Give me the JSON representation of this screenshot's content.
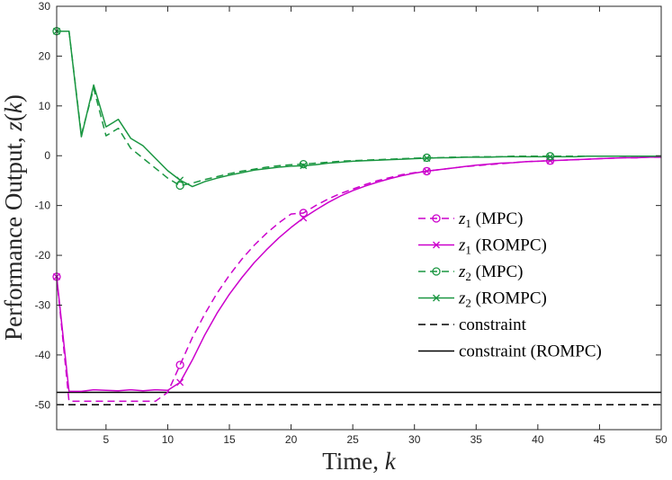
{
  "chart_data": {
    "type": "line",
    "xlabel": "Time, k",
    "ylabel": "Performance Output, z(k)",
    "xlim": [
      1,
      50
    ],
    "ylim": [
      -55,
      30
    ],
    "xticks": [
      5,
      10,
      15,
      20,
      25,
      30,
      35,
      40,
      45,
      50
    ],
    "yticks": [
      30,
      20,
      10,
      0,
      -10,
      -20,
      -30,
      -40,
      -50
    ],
    "legend_position": "right-center",
    "series": [
      {
        "name": "z1 (MPC)",
        "label_var": "z",
        "label_sub": "1",
        "label_rest": " (MPC)",
        "color": "#cc00cc",
        "dash": "8,5",
        "marker": "circle",
        "marker_x": [
          1,
          11,
          21,
          31,
          41
        ],
        "x": [
          1,
          2,
          3,
          4,
          5,
          6,
          7,
          8,
          9,
          10,
          11,
          12,
          13,
          14,
          15,
          16,
          17,
          18,
          19,
          20,
          21,
          22,
          23,
          24,
          25,
          26,
          27,
          28,
          29,
          30,
          31,
          32,
          33,
          34,
          35,
          36,
          37,
          38,
          39,
          40,
          41,
          42,
          43,
          44,
          45,
          46,
          47,
          48,
          49,
          50
        ],
        "y": [
          -24.3,
          -49.3,
          -49.3,
          -49.3,
          -49.3,
          -49.3,
          -49.3,
          -49.3,
          -49.3,
          -47.5,
          -42.0,
          -36.5,
          -31.8,
          -27.6,
          -24.0,
          -20.8,
          -18.0,
          -15.6,
          -13.5,
          -11.7,
          -11.5,
          -10.0,
          -8.7,
          -7.6,
          -6.7,
          -5.8,
          -5.0,
          -4.4,
          -3.8,
          -3.4,
          -3.1,
          -2.8,
          -2.5,
          -2.2,
          -2.0,
          -1.8,
          -1.6,
          -1.4,
          -1.2,
          -1.1,
          -1.0,
          -0.9,
          -0.8,
          -0.7,
          -0.6,
          -0.5,
          -0.4,
          -0.4,
          -0.3,
          -0.3
        ]
      },
      {
        "name": "z1 (ROMPC)",
        "label_var": "z",
        "label_sub": "1",
        "label_rest": " (ROMPC)",
        "color": "#cc00cc",
        "dash": "",
        "marker": "cross",
        "marker_x": [
          1,
          11,
          21,
          31,
          41
        ],
        "x": [
          1,
          2,
          3,
          4,
          5,
          6,
          7,
          8,
          9,
          10,
          11,
          12,
          13,
          14,
          15,
          16,
          17,
          18,
          19,
          20,
          21,
          22,
          23,
          24,
          25,
          26,
          27,
          28,
          29,
          30,
          31,
          32,
          33,
          34,
          35,
          36,
          37,
          38,
          39,
          40,
          41,
          42,
          43,
          44,
          45,
          46,
          47,
          48,
          49,
          50
        ],
        "y": [
          -24.3,
          -47.3,
          -47.3,
          -47.0,
          -47.1,
          -47.2,
          -47.0,
          -47.2,
          -47.0,
          -47.1,
          -45.5,
          -41.0,
          -36.0,
          -31.6,
          -27.8,
          -24.5,
          -21.5,
          -18.9,
          -16.5,
          -14.4,
          -12.5,
          -10.9,
          -9.4,
          -8.1,
          -7.0,
          -6.1,
          -5.3,
          -4.6,
          -4.0,
          -3.5,
          -3.1,
          -2.8,
          -2.5,
          -2.2,
          -1.9,
          -1.7,
          -1.5,
          -1.4,
          -1.2,
          -1.1,
          -1.0,
          -0.9,
          -0.8,
          -0.7,
          -0.6,
          -0.5,
          -0.4,
          -0.4,
          -0.3,
          -0.3
        ]
      },
      {
        "name": "z2 (MPC)",
        "label_var": "z",
        "label_sub": "2",
        "label_rest": " (MPC)",
        "color": "#1a9641",
        "dash": "8,5",
        "marker": "circle",
        "marker_x": [
          1,
          11,
          21,
          31,
          41
        ],
        "x": [
          1,
          2,
          3,
          4,
          5,
          6,
          7,
          8,
          9,
          10,
          11,
          12,
          13,
          14,
          15,
          16,
          17,
          18,
          19,
          20,
          21,
          22,
          23,
          24,
          25,
          26,
          27,
          28,
          29,
          30,
          31,
          32,
          33,
          34,
          35,
          36,
          37,
          38,
          39,
          40,
          41,
          42,
          43,
          44,
          45,
          46,
          47,
          48,
          49,
          50
        ],
        "y": [
          25.0,
          25.0,
          4.2,
          13.5,
          4.0,
          5.5,
          1.5,
          -0.5,
          -2.5,
          -4.5,
          -6.0,
          -5.5,
          -4.8,
          -4.2,
          -3.6,
          -3.1,
          -2.7,
          -2.3,
          -2.0,
          -1.8,
          -1.7,
          -1.5,
          -1.3,
          -1.1,
          -1.0,
          -0.9,
          -0.8,
          -0.7,
          -0.6,
          -0.5,
          -0.4,
          -0.4,
          -0.3,
          -0.3,
          -0.2,
          -0.2,
          -0.2,
          -0.1,
          -0.1,
          -0.1,
          -0.1,
          -0.1,
          -0.1,
          -0.1,
          -0.1,
          -0.1,
          -0.1,
          -0.1,
          -0.1,
          -0.1
        ]
      },
      {
        "name": "z2 (ROMPC)",
        "label_var": "z",
        "label_sub": "2",
        "label_rest": " (ROMPC)",
        "color": "#1a9641",
        "dash": "",
        "marker": "cross",
        "marker_x": [
          1,
          11,
          21,
          31,
          41
        ],
        "x": [
          1,
          2,
          3,
          4,
          5,
          6,
          7,
          8,
          9,
          10,
          11,
          12,
          13,
          14,
          15,
          16,
          17,
          18,
          19,
          20,
          21,
          22,
          23,
          24,
          25,
          26,
          27,
          28,
          29,
          30,
          31,
          32,
          33,
          34,
          35,
          36,
          37,
          38,
          39,
          40,
          41,
          42,
          43,
          44,
          45,
          46,
          47,
          48,
          49,
          50
        ],
        "y": [
          25.0,
          25.0,
          3.8,
          14.2,
          5.8,
          7.3,
          3.5,
          2.0,
          -0.5,
          -3.0,
          -4.9,
          -6.2,
          -5.2,
          -4.5,
          -3.9,
          -3.4,
          -2.9,
          -2.6,
          -2.3,
          -2.1,
          -2.0,
          -1.8,
          -1.5,
          -1.3,
          -1.1,
          -1.0,
          -0.9,
          -0.8,
          -0.7,
          -0.6,
          -0.5,
          -0.4,
          -0.4,
          -0.3,
          -0.3,
          -0.3,
          -0.2,
          -0.2,
          -0.2,
          -0.2,
          -0.2,
          -0.2,
          -0.2,
          -0.1,
          -0.1,
          -0.1,
          -0.1,
          -0.1,
          -0.1,
          -0.1
        ]
      }
    ],
    "constraints": [
      {
        "name": "constraint",
        "value": -50,
        "color": "#000000",
        "dash": "8,5"
      },
      {
        "name": "constraint (ROMPC)",
        "value": -47.5,
        "color": "#000000",
        "dash": ""
      }
    ]
  }
}
